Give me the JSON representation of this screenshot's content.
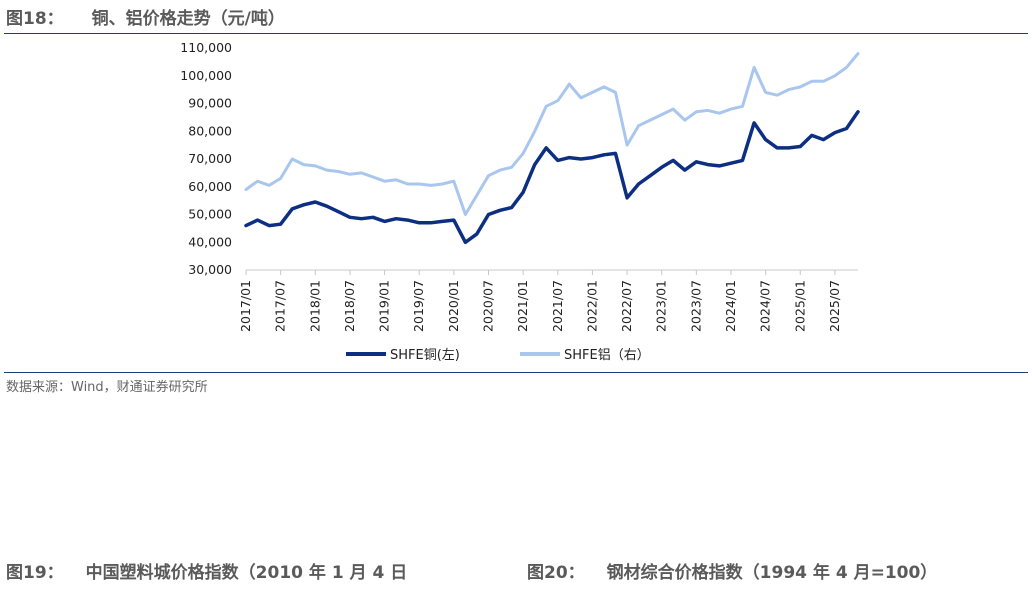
{
  "figure": {
    "number": "图18：",
    "title": "铜、铝价格走势（元/吨）",
    "source": "数据来源：Wind，财通证券研究所"
  },
  "next_figures": [
    {
      "number": "图19：",
      "title": "中国塑料城价格指数（2010 年 1 月 4 日"
    },
    {
      "number": "图20：",
      "title": "钢材综合价格指数（1994 年 4 月=100）"
    }
  ],
  "colors": {
    "copper": "#0d2f82",
    "aluminum": "#a9c6ee",
    "rule": "#1f3f7a"
  },
  "chart_data": {
    "type": "line",
    "ylim": [
      30000,
      110000
    ],
    "yticks": [
      "30,000",
      "40,000",
      "50,000",
      "60,000",
      "70,000",
      "80,000",
      "90,000",
      "100,000",
      "110,000"
    ],
    "xticks": [
      "2017/01",
      "2017/07",
      "2018/01",
      "2018/07",
      "2019/01",
      "2019/07",
      "2020/01",
      "2020/07",
      "2021/01",
      "2021/07",
      "2022/01",
      "2022/07",
      "2023/01",
      "2023/07",
      "2024/01",
      "2024/07",
      "2025/01",
      "2025/07"
    ],
    "legend_position": "bottom",
    "series": [
      {
        "name": "SHFE铜(左)",
        "color": "#0d2f82",
        "x": [
          "2017/01",
          "2017/03",
          "2017/05",
          "2017/07",
          "2017/09",
          "2017/11",
          "2018/01",
          "2018/03",
          "2018/05",
          "2018/07",
          "2018/09",
          "2018/11",
          "2019/01",
          "2019/03",
          "2019/05",
          "2019/07",
          "2019/09",
          "2019/11",
          "2020/01",
          "2020/03",
          "2020/05",
          "2020/07",
          "2020/09",
          "2020/11",
          "2021/01",
          "2021/03",
          "2021/05",
          "2021/07",
          "2021/09",
          "2021/11",
          "2022/01",
          "2022/03",
          "2022/05",
          "2022/07",
          "2022/09",
          "2022/11",
          "2023/01",
          "2023/03",
          "2023/05",
          "2023/07",
          "2023/09",
          "2023/11",
          "2024/01",
          "2024/03",
          "2024/05",
          "2024/07",
          "2024/09",
          "2024/11",
          "2025/01",
          "2025/03",
          "2025/05",
          "2025/07",
          "2025/09",
          "2025/11"
        ],
        "values": [
          46000,
          48000,
          46000,
          46500,
          52000,
          53500,
          54500,
          53000,
          51000,
          49000,
          48500,
          49000,
          47500,
          48500,
          48000,
          47000,
          47000,
          47500,
          48000,
          40000,
          43000,
          50000,
          51500,
          52500,
          58000,
          68000,
          74000,
          69500,
          70500,
          70000,
          70500,
          71500,
          72000,
          56000,
          61000,
          64000,
          67000,
          69500,
          66000,
          69000,
          68000,
          67500,
          68500,
          69500,
          83000,
          77000,
          74000,
          74000,
          74500,
          78500,
          77000,
          79500,
          81000,
          87000
        ]
      },
      {
        "name": "SHFE铝（右）",
        "color": "#a9c6ee",
        "x": [
          "2017/01",
          "2017/03",
          "2017/05",
          "2017/07",
          "2017/09",
          "2017/11",
          "2018/01",
          "2018/03",
          "2018/05",
          "2018/07",
          "2018/09",
          "2018/11",
          "2019/01",
          "2019/03",
          "2019/05",
          "2019/07",
          "2019/09",
          "2019/11",
          "2020/01",
          "2020/03",
          "2020/05",
          "2020/07",
          "2020/09",
          "2020/11",
          "2021/01",
          "2021/03",
          "2021/05",
          "2021/07",
          "2021/09",
          "2021/11",
          "2022/01",
          "2022/03",
          "2022/05",
          "2022/07",
          "2022/09",
          "2022/11",
          "2023/01",
          "2023/03",
          "2023/05",
          "2023/07",
          "2023/09",
          "2023/11",
          "2024/01",
          "2024/03",
          "2024/05",
          "2024/07",
          "2024/09",
          "2024/11",
          "2025/01",
          "2025/03",
          "2025/05",
          "2025/07",
          "2025/09",
          "2025/11"
        ],
        "values": [
          59000,
          62000,
          60500,
          63000,
          70000,
          68000,
          67500,
          66000,
          65500,
          64500,
          65000,
          63500,
          62000,
          62500,
          61000,
          61000,
          60500,
          61000,
          62000,
          50000,
          57000,
          64000,
          66000,
          67000,
          72000,
          80000,
          89000,
          91000,
          97000,
          92000,
          94000,
          96000,
          94000,
          75000,
          82000,
          84000,
          86000,
          88000,
          84000,
          87000,
          87500,
          86500,
          88000,
          89000,
          103000,
          94000,
          93000,
          95000,
          96000,
          98000,
          98000,
          100000,
          103000,
          108000
        ]
      }
    ]
  }
}
